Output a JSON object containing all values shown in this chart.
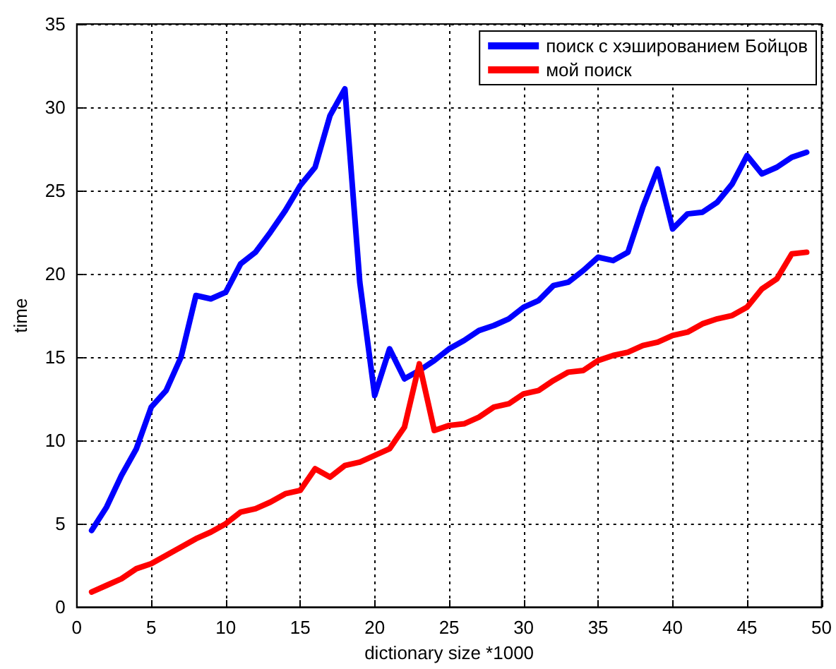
{
  "chart_data": {
    "type": "line",
    "xlabel": "dictionary size *1000",
    "ylabel": "time",
    "x": [
      1,
      2,
      3,
      4,
      5,
      6,
      7,
      8,
      9,
      10,
      11,
      12,
      13,
      14,
      15,
      16,
      17,
      18,
      19,
      20,
      21,
      22,
      23,
      24,
      25,
      26,
      27,
      28,
      29,
      30,
      31,
      32,
      33,
      34,
      35,
      36,
      37,
      38,
      39,
      40,
      41,
      42,
      43,
      44,
      45,
      46,
      47,
      48,
      49
    ],
    "series": [
      {
        "name": "поиск с хэшированием Бойцов",
        "color": "#0000ff",
        "values": [
          4.6,
          6.0,
          7.9,
          9.5,
          12.0,
          13.0,
          15.0,
          18.7,
          18.5,
          18.9,
          20.6,
          21.3,
          22.5,
          23.8,
          25.3,
          26.4,
          29.5,
          31.1,
          19.5,
          12.7,
          15.5,
          13.7,
          14.2,
          14.8,
          15.5,
          16.0,
          16.6,
          16.9,
          17.3,
          18.0,
          18.4,
          19.3,
          19.5,
          20.2,
          21.0,
          20.8,
          21.3,
          24.0,
          26.3,
          22.7,
          23.6,
          23.7,
          24.3,
          25.4,
          27.1,
          26.0,
          26.4,
          27.0,
          27.3
        ]
      },
      {
        "name": "мой поиск",
        "color": "#ff0000",
        "values": [
          0.9,
          1.3,
          1.7,
          2.3,
          2.6,
          3.1,
          3.6,
          4.1,
          4.5,
          5.0,
          5.7,
          5.9,
          6.3,
          6.8,
          7.0,
          8.3,
          7.8,
          8.5,
          8.7,
          9.1,
          9.5,
          10.8,
          14.6,
          10.6,
          10.9,
          11.0,
          11.4,
          12.0,
          12.2,
          12.8,
          13.0,
          13.6,
          14.1,
          14.2,
          14.8,
          15.1,
          15.3,
          15.7,
          15.9,
          16.3,
          16.5,
          17.0,
          17.3,
          17.5,
          18.0,
          19.1,
          19.7,
          21.2,
          21.3
        ]
      }
    ],
    "xlim": [
      0,
      50
    ],
    "xticks": [
      0,
      5,
      10,
      15,
      20,
      25,
      30,
      35,
      40,
      45,
      50
    ],
    "ylim": [
      0,
      35
    ],
    "yticks": [
      0,
      5,
      10,
      15,
      20,
      25,
      30,
      35
    ],
    "grid": true,
    "legend": "top right",
    "marker": "none",
    "line_style": "solid"
  }
}
